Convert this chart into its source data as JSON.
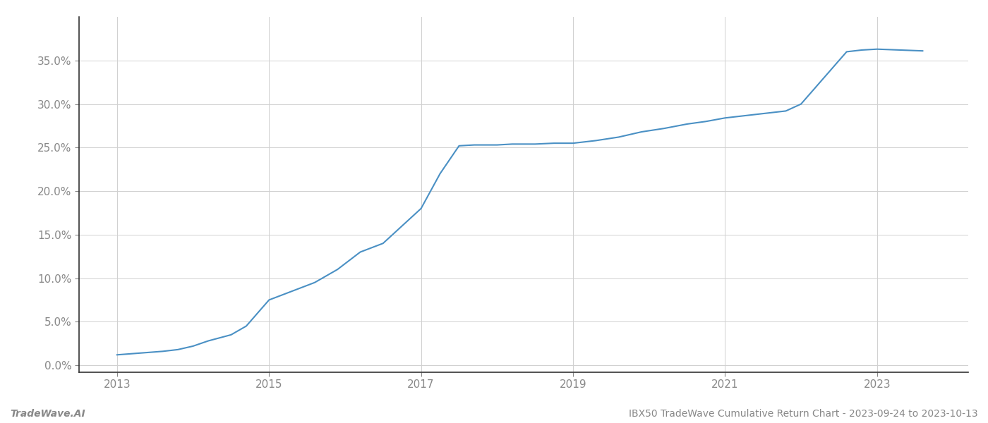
{
  "title": "IBX50 TradeWave Cumulative Return Chart - 2023-09-24 to 2023-10-13",
  "footer_left": "TradeWave.AI",
  "line_color": "#4a90c4",
  "background_color": "#ffffff",
  "grid_color": "#d0d0d0",
  "x_years": [
    2013.0,
    2013.3,
    2013.6,
    2013.8,
    2014.0,
    2014.2,
    2014.5,
    2014.7,
    2015.0,
    2015.3,
    2015.6,
    2015.9,
    2016.2,
    2016.5,
    2016.75,
    2017.0,
    2017.25,
    2017.5,
    2017.7,
    2018.0,
    2018.2,
    2018.5,
    2018.75,
    2019.0,
    2019.3,
    2019.6,
    2019.9,
    2020.2,
    2020.5,
    2020.75,
    2021.0,
    2021.2,
    2021.4,
    2021.6,
    2021.8,
    2022.0,
    2022.3,
    2022.6,
    2022.8,
    2023.0,
    2023.3,
    2023.6
  ],
  "y_values": [
    0.012,
    0.014,
    0.016,
    0.018,
    0.022,
    0.028,
    0.035,
    0.045,
    0.075,
    0.085,
    0.095,
    0.11,
    0.13,
    0.14,
    0.16,
    0.18,
    0.22,
    0.252,
    0.253,
    0.253,
    0.254,
    0.254,
    0.255,
    0.255,
    0.258,
    0.262,
    0.268,
    0.272,
    0.277,
    0.28,
    0.284,
    0.286,
    0.288,
    0.29,
    0.292,
    0.3,
    0.33,
    0.36,
    0.362,
    0.363,
    0.362,
    0.361
  ],
  "xlim": [
    2012.5,
    2024.2
  ],
  "ylim": [
    -0.008,
    0.4
  ],
  "yticks": [
    0.0,
    0.05,
    0.1,
    0.15,
    0.2,
    0.25,
    0.3,
    0.35
  ],
  "ytick_labels": [
    "0.0%",
    "5.0%",
    "10.0%",
    "15.0%",
    "20.0%",
    "25.0%",
    "30.0%",
    "35.0%"
  ],
  "xticks": [
    2013,
    2015,
    2017,
    2019,
    2021,
    2023
  ],
  "line_width": 1.5,
  "title_fontsize": 10,
  "tick_fontsize": 11,
  "footer_fontsize": 10,
  "tick_color": "#888888",
  "spine_color": "#333333",
  "axis_left_color": "#333333",
  "axis_bottom_color": "#333333"
}
